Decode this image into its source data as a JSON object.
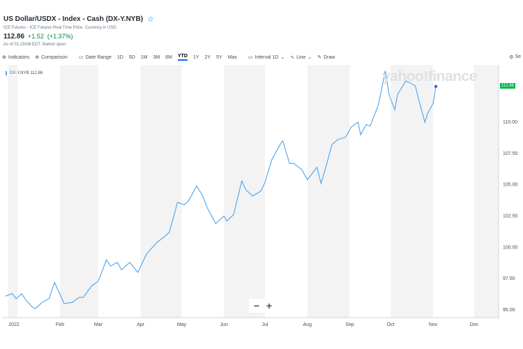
{
  "header": {
    "title": "US Dollar/USDX - Index - Cash (DX-Y.NYB)",
    "subtitle": "ICE Futures - ICE Futures Real Time Price. Currency in USD",
    "price": "112.86",
    "change": "+1.52",
    "change_pct": "(+1.37%)",
    "as_of": "As of 01:23AM EDT. Market open."
  },
  "toolbar": {
    "indicators": "Indicators",
    "comparison": "Comparison",
    "date_range": "Date Range",
    "ranges": [
      "1D",
      "5D",
      "1M",
      "3M",
      "6M",
      "YTD",
      "1Y",
      "2Y",
      "5Y",
      "Max"
    ],
    "selected_range": "YTD",
    "interval": "Interval 1D",
    "line": "Line",
    "draw": "Draw",
    "settings": "Se"
  },
  "watermark": "yahoo!finance",
  "zoom": {
    "minus": "−",
    "plus": "+"
  },
  "colors": {
    "line": "#4aa3f0",
    "up": "#00873c",
    "badge": "#00b84a",
    "band": "#f3f3f3"
  },
  "chart_data": {
    "type": "line",
    "title": "DX-Y.NYB",
    "legend": "DX-Y.NYB 112.86",
    "current_label": "112.86",
    "ylim": [
      94.7,
      114.8
    ],
    "yticks": [
      95.0,
      97.5,
      100.0,
      102.5,
      105.0,
      107.5,
      110.0
    ],
    "ytick_labels": [
      "95.00",
      "97.50",
      "100.00",
      "102.50",
      "105.00",
      "107.50",
      "110.00"
    ],
    "xticks": [
      {
        "date": "2022-01-03",
        "label": "2022"
      },
      {
        "date": "2022-02-01",
        "label": "Feb"
      },
      {
        "date": "2022-03-01",
        "label": "Mar"
      },
      {
        "date": "2022-04-01",
        "label": "Apr"
      },
      {
        "date": "2022-05-01",
        "label": "May"
      },
      {
        "date": "2022-06-01",
        "label": "Jun"
      },
      {
        "date": "2022-07-01",
        "label": "Jul"
      },
      {
        "date": "2022-08-01",
        "label": "Aug"
      },
      {
        "date": "2022-09-01",
        "label": "Sep"
      },
      {
        "date": "2022-10-01",
        "label": "Oct"
      },
      {
        "date": "2022-11-01",
        "label": "Nov"
      },
      {
        "date": "2022-12-01",
        "label": "Dec"
      }
    ],
    "series": [
      {
        "name": "DX-Y.NYB",
        "points": [
          [
            "2021-12-23",
            96.1
          ],
          [
            "2021-12-28",
            96.3
          ],
          [
            "2021-12-31",
            95.9
          ],
          [
            "2022-01-04",
            96.3
          ],
          [
            "2022-01-07",
            95.8
          ],
          [
            "2022-01-12",
            95.2
          ],
          [
            "2022-01-14",
            95.1
          ],
          [
            "2022-01-19",
            95.6
          ],
          [
            "2022-01-24",
            95.9
          ],
          [
            "2022-01-28",
            97.2
          ],
          [
            "2022-02-02",
            96.0
          ],
          [
            "2022-02-04",
            95.5
          ],
          [
            "2022-02-10",
            95.6
          ],
          [
            "2022-02-15",
            96.0
          ],
          [
            "2022-02-18",
            96.0
          ],
          [
            "2022-02-24",
            96.9
          ],
          [
            "2022-03-01",
            97.3
          ],
          [
            "2022-03-07",
            99.0
          ],
          [
            "2022-03-10",
            98.5
          ],
          [
            "2022-03-15",
            98.8
          ],
          [
            "2022-03-18",
            98.2
          ],
          [
            "2022-03-24",
            98.8
          ],
          [
            "2022-03-30",
            98.0
          ],
          [
            "2022-04-05",
            99.4
          ],
          [
            "2022-04-08",
            99.8
          ],
          [
            "2022-04-13",
            100.4
          ],
          [
            "2022-04-19",
            100.9
          ],
          [
            "2022-04-22",
            101.2
          ],
          [
            "2022-04-28",
            103.6
          ],
          [
            "2022-05-03",
            103.4
          ],
          [
            "2022-05-06",
            103.7
          ],
          [
            "2022-05-12",
            104.9
          ],
          [
            "2022-05-16",
            104.2
          ],
          [
            "2022-05-20",
            103.1
          ],
          [
            "2022-05-26",
            101.9
          ],
          [
            "2022-06-01",
            102.5
          ],
          [
            "2022-06-03",
            102.1
          ],
          [
            "2022-06-08",
            102.6
          ],
          [
            "2022-06-14",
            105.3
          ],
          [
            "2022-06-17",
            104.6
          ],
          [
            "2022-06-22",
            104.1
          ],
          [
            "2022-06-28",
            104.5
          ],
          [
            "2022-07-01",
            105.2
          ],
          [
            "2022-07-06",
            107.0
          ],
          [
            "2022-07-12",
            108.2
          ],
          [
            "2022-07-14",
            108.5
          ],
          [
            "2022-07-19",
            106.7
          ],
          [
            "2022-07-22",
            106.7
          ],
          [
            "2022-07-28",
            106.2
          ],
          [
            "2022-08-01",
            105.4
          ],
          [
            "2022-08-08",
            106.4
          ],
          [
            "2022-08-11",
            105.1
          ],
          [
            "2022-08-15",
            106.6
          ],
          [
            "2022-08-19",
            108.2
          ],
          [
            "2022-08-23",
            108.6
          ],
          [
            "2022-08-29",
            108.8
          ],
          [
            "2022-09-02",
            109.6
          ],
          [
            "2022-09-07",
            110.0
          ],
          [
            "2022-09-09",
            109.0
          ],
          [
            "2022-09-13",
            109.8
          ],
          [
            "2022-09-16",
            109.7
          ],
          [
            "2022-09-22",
            111.4
          ],
          [
            "2022-09-27",
            114.1
          ],
          [
            "2022-09-30",
            112.1
          ],
          [
            "2022-10-04",
            111.0
          ],
          [
            "2022-10-06",
            112.2
          ],
          [
            "2022-10-12",
            113.3
          ],
          [
            "2022-10-14",
            113.2
          ],
          [
            "2022-10-19",
            112.9
          ],
          [
            "2022-10-21",
            112.0
          ],
          [
            "2022-10-26",
            110.0
          ],
          [
            "2022-10-28",
            110.7
          ],
          [
            "2022-11-01",
            111.5
          ],
          [
            "2022-11-03",
            112.86
          ]
        ]
      }
    ]
  }
}
